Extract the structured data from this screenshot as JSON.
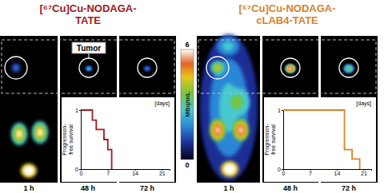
{
  "panels": [
    {
      "title_lines": [
        "[⁶⁷Cu]Cu-NODAGA-",
        "TATE"
      ],
      "color": "#9e1b1e"
    },
    {
      "title_lines": [
        "[⁶⁷Cu]Cu-NODAGA-",
        "cLAB4-TATE"
      ],
      "color": "#d9822b"
    }
  ],
  "time_labels": [
    "1 h",
    "48 h",
    "72 h"
  ],
  "tumor_label": "Tumor",
  "colorbar": {
    "label": "MBq/mL",
    "range": [
      0,
      6
    ],
    "ticks": [
      0,
      6
    ]
  },
  "chart_data": [
    {
      "type": "line",
      "line_style": "step",
      "color": "#9e1b1e",
      "x": [
        0,
        3,
        4,
        6,
        7,
        8
      ],
      "values": [
        1,
        0.83,
        0.67,
        0.5,
        0.33,
        0
      ],
      "xlim": [
        0,
        23
      ],
      "xticks": [
        0,
        7,
        14,
        21
      ],
      "ylim": [
        0,
        1
      ],
      "yticks": [
        0,
        1
      ],
      "xlabel": "[days]",
      "ylabel": [
        "Progression-",
        "free survival"
      ]
    },
    {
      "type": "line",
      "line_style": "step",
      "color": "#d9822b",
      "x": [
        0,
        16,
        18,
        20
      ],
      "values": [
        1,
        0.33,
        0.17,
        0
      ],
      "xlim": [
        0,
        23
      ],
      "xticks": [
        0,
        7,
        14,
        21
      ],
      "ylim": [
        0,
        1
      ],
      "yticks": [
        0,
        1
      ],
      "xlabel": "[days]",
      "ylabel": [
        "Progression-",
        "free survival"
      ]
    }
  ]
}
